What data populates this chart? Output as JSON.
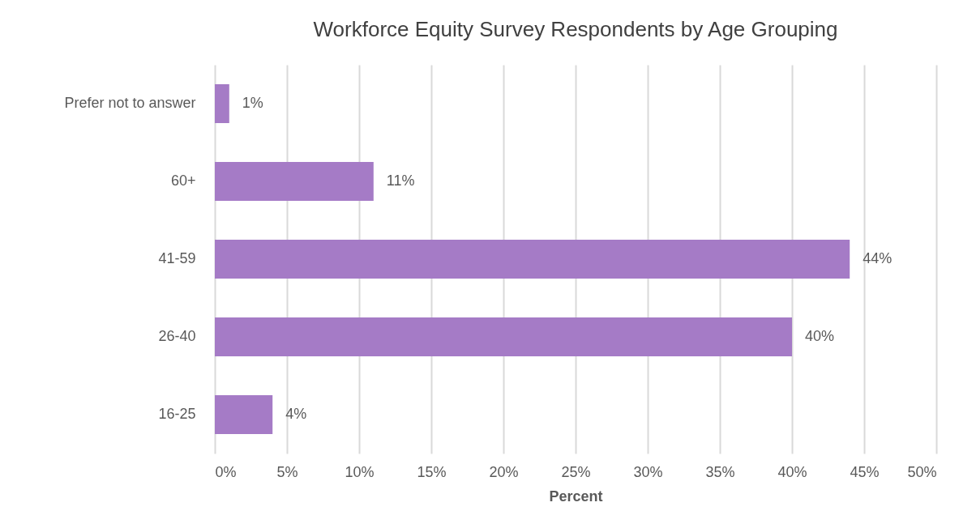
{
  "chart_data": {
    "type": "bar",
    "orientation": "horizontal",
    "title": "Workforce Equity Survey Respondents by Age Grouping",
    "xlabel": "Percent",
    "categories": [
      "Prefer not to answer",
      "60+",
      "41-59",
      "26-40",
      "16-25"
    ],
    "values": [
      1,
      11,
      44,
      40,
      4
    ],
    "value_labels": [
      "1%",
      "11%",
      "44%",
      "40%",
      "4%"
    ],
    "color": "#a57bc6",
    "xlim": [
      0,
      50
    ],
    "xticks": [
      {
        "value": 0,
        "label": "0%"
      },
      {
        "value": 5,
        "label": "5%"
      },
      {
        "value": 10,
        "label": "10%"
      },
      {
        "value": 15,
        "label": "15%"
      },
      {
        "value": 20,
        "label": "20%"
      },
      {
        "value": 25,
        "label": "25%"
      },
      {
        "value": 30,
        "label": "30%"
      },
      {
        "value": 35,
        "label": "35%"
      },
      {
        "value": 40,
        "label": "40%"
      },
      {
        "value": 45,
        "label": "45%"
      },
      {
        "value": 50,
        "label": "50%"
      }
    ],
    "grid": "x"
  }
}
